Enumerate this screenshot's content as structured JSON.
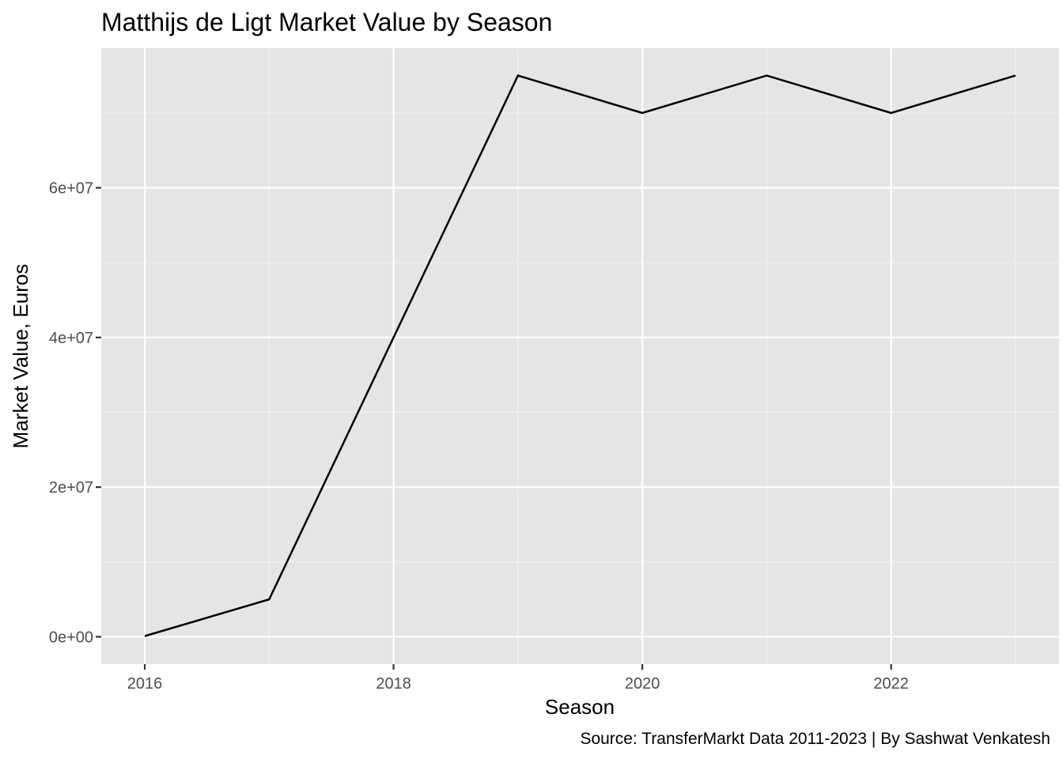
{
  "chart_data": {
    "type": "line",
    "title": "Matthijs de Ligt Market Value by Season",
    "xlabel": "Season",
    "ylabel": "Market Value, Euros",
    "caption": "Source: TransferMarkt Data 2011-2023 | By Sashwat Venkatesh",
    "x": [
      2016,
      2017,
      2018,
      2019,
      2020,
      2021,
      2022,
      2023
    ],
    "series": [
      {
        "values": [
          100000,
          5000000,
          40000000,
          75000000,
          70000000,
          75000000,
          70000000,
          75000000
        ]
      }
    ],
    "xlim": [
      2015.65,
      2023.35
    ],
    "ylim": [
      -3650000,
      78650000
    ],
    "x_ticks": [
      2016,
      2018,
      2020,
      2022
    ],
    "x_tick_labels": [
      "2016",
      "2018",
      "2020",
      "2022"
    ],
    "x_minor_ticks": [
      2017,
      2019,
      2021,
      2023
    ],
    "y_ticks": [
      0,
      20000000,
      40000000,
      60000000
    ],
    "y_tick_labels": [
      "0e+00",
      "2e+07",
      "4e+07",
      "6e+07"
    ],
    "y_minor_ticks": [
      10000000,
      30000000,
      50000000,
      70000000
    ],
    "grid": true,
    "legend": "none",
    "colors": {
      "panel_background": "#E5E5E5",
      "grid_major": "#FFFFFF",
      "grid_minor": "#F2F2F2",
      "line": "#000000",
      "tick_text": "#4D4D4D",
      "axis_title": "#000000"
    }
  }
}
